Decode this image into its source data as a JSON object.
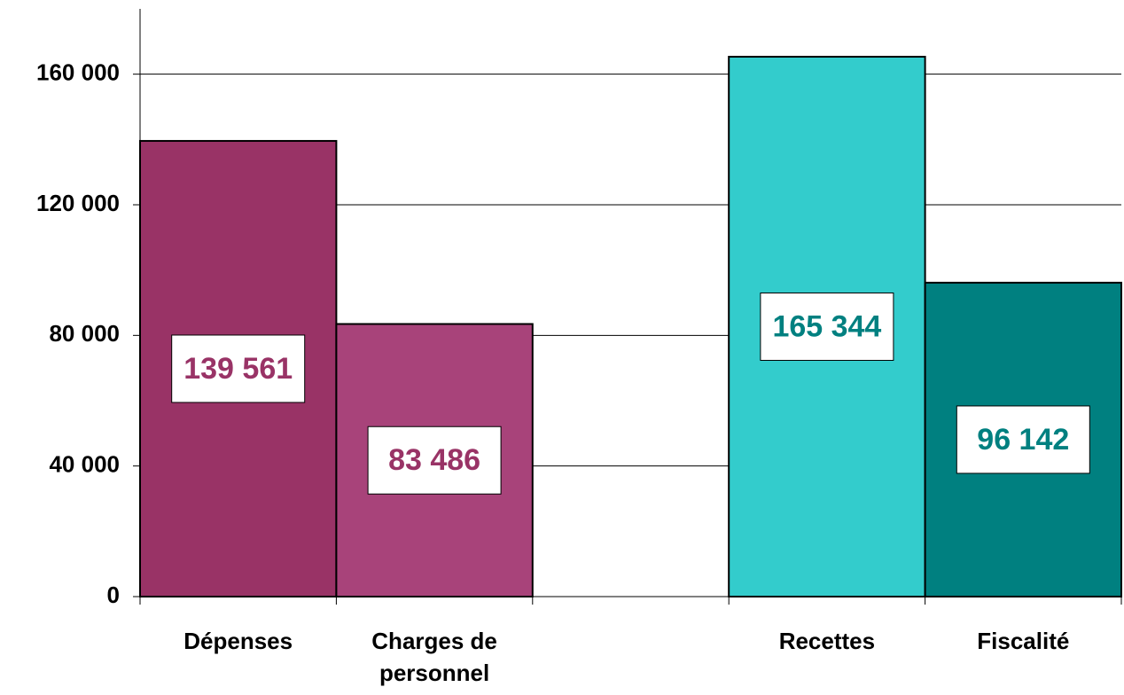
{
  "chart_data": {
    "type": "bar",
    "categories": [
      "Dépenses",
      "Charges de personnel",
      null,
      "Recettes",
      "Fiscalité"
    ],
    "values": [
      139561,
      83486,
      null,
      165344,
      96142
    ],
    "value_labels": [
      "139 561",
      "83 486",
      null,
      "165 344",
      "96 142"
    ],
    "colors": [
      "#993366",
      "#a8437a",
      null,
      "#33cccc",
      "#008080"
    ],
    "label_colors": [
      "#993366",
      "#993366",
      null,
      "#008080",
      "#008080"
    ],
    "ylim": [
      0,
      180000
    ],
    "yticks": [
      0,
      {
        "value": 40000,
        "label": "40 000"
      },
      {
        "value": 80000,
        "label": "80 000"
      },
      {
        "value": 120000,
        "label": "120 000"
      },
      {
        "value": 160000,
        "label": "160 000"
      }
    ],
    "grid": true
  }
}
